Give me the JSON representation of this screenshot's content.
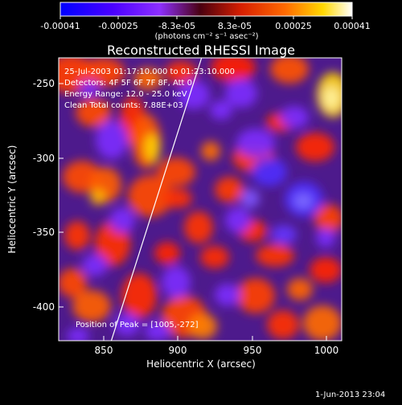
{
  "colorbar": {
    "tick_labels": [
      "-0.00041",
      "-0.00025",
      "-8.3e-05",
      "8.3e-05",
      "0.00025",
      "0.00041"
    ],
    "units_label": "(photons cm⁻² s⁻¹ asec⁻²)"
  },
  "plot": {
    "title": "Reconstructed RHESSI Image",
    "xlabel": "Heliocentric X (arcsec)",
    "ylabel": "Heliocentric Y (arcsec)",
    "x_ticks": [
      "850",
      "900",
      "950",
      "1000"
    ],
    "y_ticks": [
      "-250",
      "-300",
      "-350",
      "-400"
    ],
    "info_lines": [
      "25-Jul-2003 01:17:10.000 to 01:23:10.000",
      "Detectors: 4F 5F 6F 7F 8F, Att 0",
      "Energy Range: 12.0 - 25.0 keV",
      "Clean     Total counts: 7.88E+03"
    ],
    "peak_text": "Position of Peak = [1005,-272]"
  },
  "footer": {
    "date_text": "1-Jun-2013 23:04"
  },
  "chart_data": {
    "type": "heatmap",
    "title": "Reconstructed RHESSI Image",
    "xlabel": "Heliocentric X (arcsec)",
    "ylabel": "Heliocentric Y (arcsec)",
    "xlim": [
      820,
      1010
    ],
    "ylim": [
      -425,
      -235
    ],
    "x_ticks": [
      850,
      900,
      950,
      1000
    ],
    "y_ticks": [
      -250,
      -300,
      -350,
      -400
    ],
    "colorbar_range": [
      -0.00041,
      0.00041
    ],
    "colorbar_ticks": [
      -0.00041,
      -0.00025,
      -8.3e-05,
      8.3e-05,
      0.00025,
      0.00041
    ],
    "peak_position": [
      1005,
      -272
    ]
  },
  "colors": {
    "background": "#000000",
    "foreground": "#ffffff",
    "colormap": [
      "#0000ff",
      "#7d2cff",
      "#ff2f00",
      "#ff8000",
      "#ffff00",
      "#ffffff"
    ]
  }
}
